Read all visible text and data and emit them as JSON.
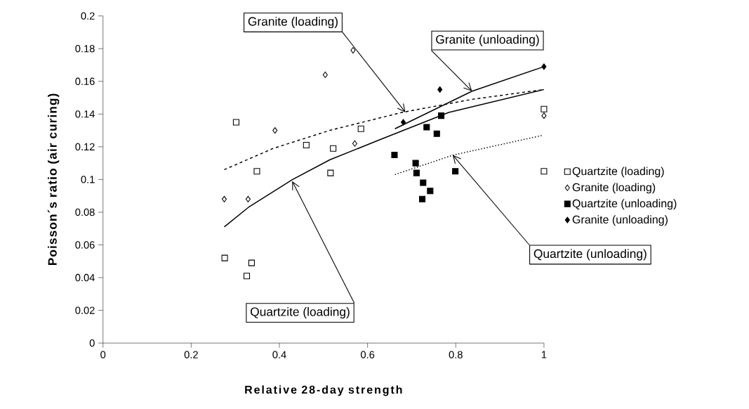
{
  "chart_data": {
    "type": "scatter",
    "xlabel": "Relative 28-day strength",
    "ylabel": "Poisson´s ratio (air curing)",
    "xlim": [
      0,
      1
    ],
    "ylim": [
      0,
      0.2
    ],
    "xticks": [
      0,
      0.2,
      0.4,
      0.6,
      0.8,
      1
    ],
    "yticks": [
      0,
      0.02,
      0.04,
      0.06,
      0.08,
      0.1,
      0.12,
      0.14,
      0.16,
      0.18,
      0.2
    ],
    "legend": "right",
    "series": [
      {
        "name": "Quartzite (loading)",
        "marker": "square",
        "color": "#000000",
        "x": [
          0.302,
          0.349,
          0.276,
          0.337,
          0.326,
          0.461,
          0.522,
          0.516,
          0.585,
          1.0,
          1.0
        ],
        "values": [
          0.135,
          0.105,
          0.052,
          0.049,
          0.041,
          0.121,
          0.119,
          0.104,
          0.131,
          0.105,
          0.143
        ]
      },
      {
        "name": "Granite (loading)",
        "marker": "diamond",
        "color": "#000000",
        "x": [
          0.275,
          0.329,
          0.39,
          0.504,
          0.567,
          0.571,
          1.0
        ],
        "values": [
          0.088,
          0.088,
          0.13,
          0.164,
          0.179,
          0.122,
          0.139
        ]
      },
      {
        "name": "Quartzite (unloading)",
        "marker": "square",
        "color": "#000000",
        "x": [
          0.661,
          0.709,
          0.711,
          0.726,
          0.742,
          0.724,
          0.734,
          0.757,
          0.767,
          0.799
        ],
        "values": [
          0.115,
          0.11,
          0.104,
          0.098,
          0.093,
          0.088,
          0.132,
          0.128,
          0.139,
          0.105
        ]
      },
      {
        "name": "Granite (unloading)",
        "marker": "diamond",
        "color": "#000000",
        "x": [
          0.681,
          0.764,
          1.0
        ],
        "values": [
          0.135,
          0.155,
          0.169
        ]
      },
      {
        "type": "line",
        "line_style": "solid",
        "color": "#000000",
        "x": [
          0.275,
          0.33,
          0.43,
          0.514,
          0.625,
          0.784,
          1.0
        ],
        "values": [
          0.071,
          0.083,
          0.1,
          0.112,
          0.124,
          0.141,
          0.155
        ]
      },
      {
        "type": "line",
        "line_style": "dashed",
        "color": "#000000",
        "x": [
          0.275,
          0.386,
          0.514,
          0.678,
          0.837,
          1.0
        ],
        "values": [
          0.106,
          0.119,
          0.13,
          0.141,
          0.149,
          0.155
        ]
      },
      {
        "type": "line",
        "line_style": "dotted",
        "color": "#000000",
        "x": [
          0.662,
          0.795,
          0.997
        ],
        "values": [
          0.103,
          0.115,
          0.127
        ]
      },
      {
        "type": "line",
        "line_style": "solid",
        "color": "#000000",
        "x": [
          0.662,
          0.837,
          1.0
        ],
        "values": [
          0.131,
          0.154,
          0.169
        ]
      }
    ],
    "annotations": [
      {
        "text": "Granite (loading)",
        "x": 0.686,
        "y": 0.141
      },
      {
        "text": "Granite (unloading)",
        "x": 0.837,
        "y": 0.154
      },
      {
        "text": "Quartzite (unloading)",
        "x": 0.793,
        "y": 0.115
      },
      {
        "text": "Quartzite (loading)",
        "x": 0.429,
        "y": 0.099
      }
    ]
  }
}
